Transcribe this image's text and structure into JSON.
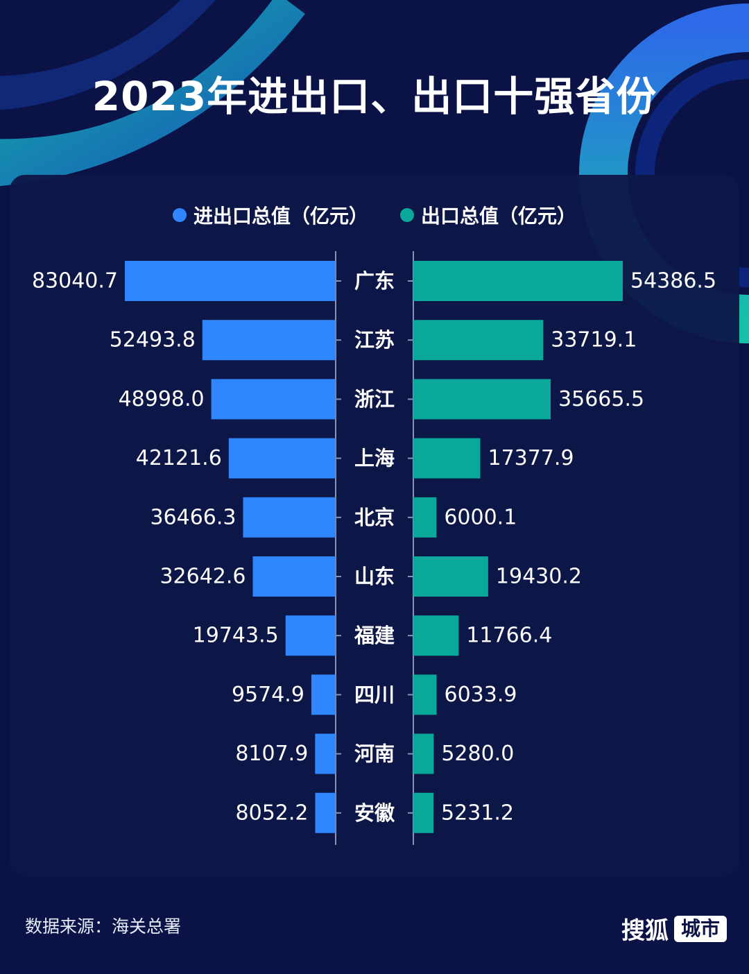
{
  "page": {
    "source_text": "数据来源：海关总署",
    "brand_main": "搜狐",
    "brand_tag": "城市"
  },
  "colors": {
    "background": "#0b1245",
    "import_export": "#2f86ff",
    "export": "#0aa89a",
    "teal_accent": "#13c7b0"
  },
  "chart_data": {
    "type": "bar",
    "orientation": "horizontal-butterfly",
    "title": "2023年进出口、出口十强省份",
    "categories": [
      "广东",
      "江苏",
      "浙江",
      "上海",
      "北京",
      "山东",
      "福建",
      "四川",
      "河南",
      "安徽"
    ],
    "series": [
      {
        "name": "进出口总值（亿元）",
        "side": "left",
        "values": [
          83040.7,
          52493.8,
          48998.0,
          42121.6,
          36466.3,
          32642.6,
          19743.5,
          9574.9,
          8107.9,
          8052.2
        ],
        "labels": [
          "83040.7",
          "52493.8",
          "48998.0",
          "42121.6",
          "36466.3",
          "32642.6",
          "19743.5",
          "9574.9",
          "8107.9",
          "8052.2"
        ]
      },
      {
        "name": "出口总值（亿元）",
        "side": "right",
        "values": [
          54386.5,
          33719.1,
          35665.5,
          17377.9,
          6000.1,
          19430.2,
          11766.4,
          6033.9,
          5280.0,
          5231.2
        ],
        "labels": [
          "54386.5",
          "33719.1",
          "35665.5",
          "17377.9",
          "6000.1",
          "19430.2",
          "11766.4",
          "6033.9",
          "5280.0",
          "5231.2"
        ]
      }
    ],
    "legend_position": "top-center",
    "grid": false
  }
}
